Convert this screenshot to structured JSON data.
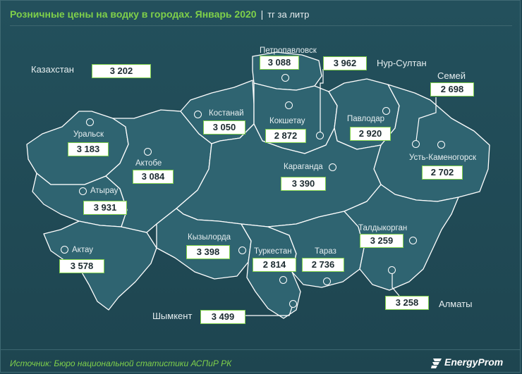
{
  "header": {
    "title": "Розничные цены на водку в городах. Январь 2020",
    "separator": "|",
    "unit": "тг за литр"
  },
  "national": {
    "label": "Казахстан",
    "value": "3 202"
  },
  "cities": [
    {
      "id": "petropavlovsk",
      "label": "Петропавловск",
      "value": "3 088"
    },
    {
      "id": "nur-sultan",
      "label": "Нур-Султан",
      "value": "3 962"
    },
    {
      "id": "semey",
      "label": "Семей",
      "value": "2 698"
    },
    {
      "id": "kostanay",
      "label": "Костанай",
      "value": "3 050"
    },
    {
      "id": "kokshetau",
      "label": "Кокшетау",
      "value": "2 872"
    },
    {
      "id": "pavlodar",
      "label": "Павлодар",
      "value": "2 920"
    },
    {
      "id": "uralsk",
      "label": "Уральск",
      "value": "3 183"
    },
    {
      "id": "aktobe",
      "label": "Актобе",
      "value": "3 084"
    },
    {
      "id": "ust-kamenogorsk",
      "label": "Усть-Каменогорск",
      "value": "2 702"
    },
    {
      "id": "karaganda",
      "label": "Караганда",
      "value": "3 390"
    },
    {
      "id": "atyrau",
      "label": "Атырау",
      "value": "3 931"
    },
    {
      "id": "kyzylorda",
      "label": "Кызылорда",
      "value": "3 398"
    },
    {
      "id": "taldykorgan",
      "label": "Талдыкорган",
      "value": "3 259"
    },
    {
      "id": "aktau",
      "label": "Актау",
      "value": "3 578"
    },
    {
      "id": "turkestan",
      "label": "Туркестан",
      "value": "2 814"
    },
    {
      "id": "taraz",
      "label": "Тараз",
      "value": "2 736"
    },
    {
      "id": "almaty",
      "label": "Алматы",
      "value": "3 258"
    },
    {
      "id": "shymkent",
      "label": "Шымкент",
      "value": "3 499"
    }
  ],
  "footer": {
    "source": "Источник: Бюро национальной  статистики АСПиР РК",
    "brand": "EnergyProm"
  },
  "colors": {
    "background": "#1f4652",
    "region_fill": "#2f6471",
    "region_border": "#ffffff",
    "accent": "#7fd04a",
    "value_box": "#ffffff"
  }
}
